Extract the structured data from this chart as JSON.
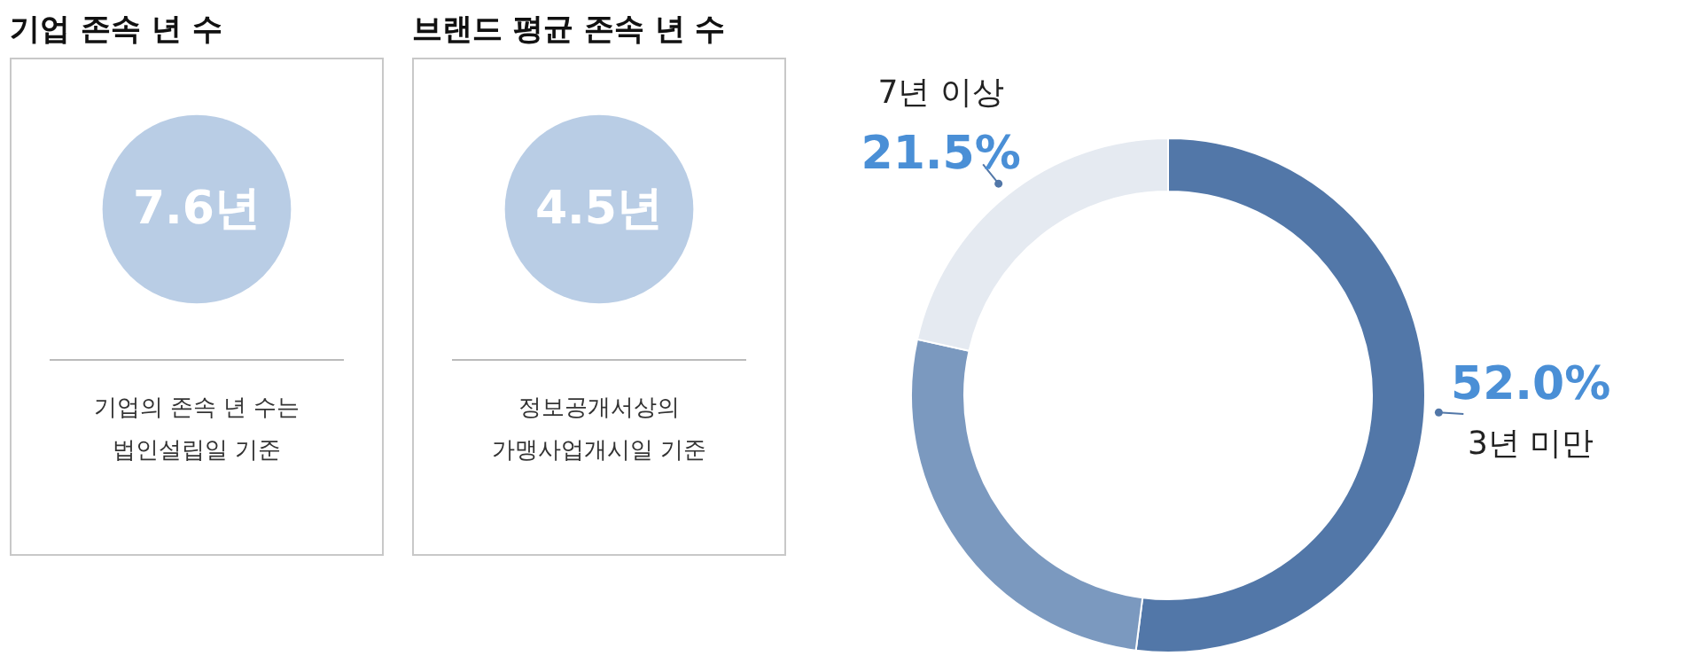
{
  "chart_data": [
    {
      "type": "other",
      "title": "기업 존속 년 수",
      "annotations": [
        "7.6년",
        "기업의 존속 년 수는",
        "법인설립일 기준"
      ]
    },
    {
      "type": "other",
      "title": "브랜드 평균 존속 년 수",
      "annotations": [
        "4.5년",
        "정보공개서상의",
        "가맹사업개시일 기준"
      ]
    },
    {
      "type": "donut",
      "categories": [
        "3년 미만",
        null,
        "7년 이상"
      ],
      "values": [
        52.0,
        26.5,
        21.5
      ],
      "colors": [
        "#5277a8",
        "#7b99bf",
        "#e5eaf1"
      ],
      "value_labels": [
        "52.0%",
        null,
        "21.5%"
      ]
    }
  ]
}
